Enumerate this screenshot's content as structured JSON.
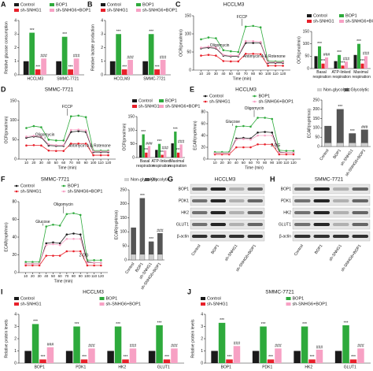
{
  "chart_data": [
    {
      "type": "bar",
      "label": "A",
      "ylabel": "Relative glucose consumption",
      "categories": [
        "HCCLM3",
        "SMMC-7721"
      ],
      "legend": true,
      "ylim": [
        0,
        4
      ],
      "yticks": [
        0,
        1,
        2,
        3,
        4
      ],
      "series": [
        {
          "name": "Control",
          "color": "#1a1a1a",
          "values": [
            1,
            1
          ]
        },
        {
          "name": "BOP1",
          "color": "#2eaa3c",
          "values": [
            3.1,
            2.8
          ],
          "sig": [
            "***",
            "***"
          ]
        },
        {
          "name": "sh-SNHG1",
          "color": "#e8202a",
          "values": [
            0.4,
            0.4
          ],
          "sig": [
            "***",
            "***"
          ]
        },
        {
          "name": "sh-SNHG6+BOP1",
          "color": "#f7a1c4",
          "values": [
            1.2,
            1.2
          ],
          "sig": [
            "###",
            "###"
          ]
        }
      ]
    },
    {
      "type": "bar",
      "label": "B",
      "ylabel": "Relative lactate production",
      "categories": [
        "HCCLM3",
        "SMMC-7721"
      ],
      "legend": true,
      "ylim": [
        0,
        4
      ],
      "yticks": [
        0,
        1,
        2,
        3,
        4
      ],
      "series": [
        {
          "name": "Control",
          "color": "#1a1a1a",
          "values": [
            1,
            1
          ]
        },
        {
          "name": "BOP1",
          "color": "#2eaa3c",
          "values": [
            3.0,
            3.0
          ],
          "sig": [
            "***",
            "***"
          ]
        },
        {
          "name": "sh-SNHG1",
          "color": "#e8202a",
          "values": [
            0.4,
            0.4
          ],
          "sig": [
            "***",
            "***"
          ]
        },
        {
          "name": "sh-SNHG6+BOP1",
          "color": "#f7a1c4",
          "values": [
            1.1,
            1.1
          ],
          "sig": [
            "###",
            "###"
          ]
        }
      ]
    },
    {
      "type": "line",
      "label": "C",
      "title": "HCCLM3",
      "ylabel": "OCR(pmol/min)",
      "xlabel": "Time (min)",
      "x": [
        10,
        20,
        30,
        40,
        50,
        60,
        70,
        80,
        90,
        100,
        110,
        120
      ],
      "xlim": [
        0,
        130
      ],
      "xticks": [
        10,
        20,
        30,
        40,
        50,
        60,
        70,
        80,
        90,
        100,
        110,
        120
      ],
      "ylim": [
        0,
        150
      ],
      "yticks": [
        0,
        50,
        100,
        150
      ],
      "annotations": [
        {
          "text": "Oligomycin",
          "x": 35
        },
        {
          "text": "FCCP",
          "x": 65
        },
        {
          "text": "Antimycin A & Rotenone",
          "x": 95
        }
      ],
      "series": [
        {
          "name": "Control",
          "color": "#1a1a1a",
          "values": [
            60,
            62,
            60,
            40,
            38,
            38,
            75,
            75,
            75,
            20,
            20,
            20
          ]
        },
        {
          "name": "BOP1",
          "color": "#2eaa3c",
          "values": [
            85,
            90,
            88,
            55,
            52,
            50,
            120,
            122,
            118,
            25,
            24,
            24
          ]
        },
        {
          "name": "sh-SNHG1",
          "color": "#e8202a",
          "values": [
            40,
            42,
            40,
            25,
            24,
            24,
            45,
            45,
            44,
            12,
            12,
            12
          ]
        },
        {
          "name": "sh-SNHG6+BOP1",
          "color": "#f7a1c4",
          "values": [
            62,
            65,
            62,
            42,
            40,
            40,
            80,
            80,
            78,
            22,
            22,
            22
          ]
        }
      ]
    },
    {
      "type": "bar",
      "ylabel": "OCR(pmol/min)",
      "categories": [
        "Basal respiration",
        "ATP-linked respiration",
        "Maximal respiration"
      ],
      "wrap": true,
      "legend": true,
      "ylim": [
        0,
        150
      ],
      "yticks": [
        0,
        50,
        100,
        150
      ],
      "series": [
        {
          "name": "Control",
          "color": "#1a1a1a",
          "values": [
            50,
            30,
            55
          ]
        },
        {
          "name": "BOP1",
          "color": "#2eaa3c",
          "values": [
            90,
            55,
            100
          ],
          "sig": [
            "***",
            "***",
            "***"
          ]
        },
        {
          "name": "sh-SNHG1",
          "color": "#e8202a",
          "values": [
            20,
            12,
            20
          ],
          "sig": [
            "***",
            "***",
            "***"
          ]
        },
        {
          "name": "sh-SNHG6+BOP1",
          "color": "#f7a1c4",
          "values": [
            45,
            28,
            50
          ],
          "sig": [
            "###",
            "###",
            "###"
          ]
        }
      ]
    },
    {
      "type": "line",
      "label": "D",
      "title": "SMMC-7721",
      "ylabel": "OCR(pmol/min)",
      "xlabel": "Time (min)",
      "x": [
        10,
        20,
        30,
        40,
        50,
        60,
        70,
        80,
        90,
        100,
        110,
        120
      ],
      "xlim": [
        0,
        130
      ],
      "xticks": [
        10,
        20,
        30,
        40,
        50,
        60,
        70,
        80,
        90,
        100,
        110,
        120
      ],
      "ylim": [
        0,
        150
      ],
      "yticks": [
        0,
        50,
        100,
        150
      ],
      "annotations": [
        {
          "text": "Oligomycin",
          "x": 35
        },
        {
          "text": "FCCP",
          "x": 65
        },
        {
          "text": "Antimycin A & Rotenone",
          "x": 95
        }
      ],
      "series": [
        {
          "name": "Control",
          "color": "#1a1a1a",
          "values": [
            55,
            58,
            56,
            35,
            34,
            34,
            70,
            72,
            70,
            18,
            18,
            18
          ]
        },
        {
          "name": "BOP1",
          "color": "#2eaa3c",
          "values": [
            80,
            85,
            82,
            50,
            48,
            48,
            110,
            112,
            108,
            22,
            22,
            22
          ]
        },
        {
          "name": "sh-SNHG1",
          "color": "#e8202a",
          "values": [
            35,
            36,
            35,
            22,
            21,
            21,
            40,
            40,
            40,
            10,
            10,
            10
          ]
        },
        {
          "name": "sh-SNHG6+BOP1",
          "color": "#f7a1c4",
          "values": [
            58,
            60,
            58,
            38,
            36,
            36,
            75,
            76,
            74,
            20,
            20,
            20
          ]
        }
      ]
    },
    {
      "type": "bar",
      "ylabel": "OCR(pmol/min)",
      "categories": [
        "Basal respiration",
        "ATP-linked respiration",
        "Maximal respiration"
      ],
      "wrap": true,
      "legend": true,
      "ylim": [
        0,
        150
      ],
      "yticks": [
        0,
        50,
        100,
        150
      ],
      "series": [
        {
          "name": "Control",
          "color": "#1a1a1a",
          "values": [
            45,
            28,
            52
          ]
        },
        {
          "name": "BOP1",
          "color": "#2eaa3c",
          "values": [
            85,
            50,
            95
          ],
          "sig": [
            "***",
            "***",
            "***"
          ]
        },
        {
          "name": "sh-SNHG1",
          "color": "#e8202a",
          "values": [
            18,
            10,
            18
          ],
          "sig": [
            "***",
            "***",
            "***"
          ]
        },
        {
          "name": "sh-SNHG6+BOP1",
          "color": "#f7a1c4",
          "values": [
            42,
            26,
            48
          ],
          "sig": [
            "###",
            "###",
            "###"
          ]
        }
      ]
    },
    {
      "type": "line",
      "label": "E",
      "title": "HCCLM3",
      "legend": true,
      "ylabel": "ECAR(mpH/min)",
      "xlabel": "Time (min)",
      "x": [
        10,
        20,
        30,
        40,
        50,
        60,
        70,
        80,
        90,
        100,
        110,
        120
      ],
      "xlim": [
        0,
        130
      ],
      "xticks": [
        10,
        20,
        30,
        40,
        50,
        60,
        70,
        80,
        90,
        100,
        110,
        120
      ],
      "ylim": [
        0,
        80
      ],
      "yticks": [
        0,
        20,
        40,
        60,
        80
      ],
      "annotations": [
        {
          "text": "Glucose",
          "x": 35
        },
        {
          "text": "Oligomycin",
          "x": 65
        },
        {
          "text": "2-DG",
          "x": 95
        }
      ],
      "series": [
        {
          "name": "Control",
          "color": "#1a1a1a",
          "values": [
            10,
            10,
            10,
            35,
            36,
            35,
            45,
            46,
            45,
            12,
            11,
            11
          ]
        },
        {
          "name": "BOP1",
          "color": "#2eaa3c",
          "values": [
            12,
            12,
            12,
            55,
            56,
            55,
            70,
            70,
            68,
            15,
            14,
            14
          ]
        },
        {
          "name": "sh-SNHG1",
          "color": "#e8202a",
          "values": [
            8,
            8,
            8,
            20,
            20,
            20,
            25,
            25,
            25,
            8,
            8,
            8
          ]
        },
        {
          "name": "sh-SNHG6+BOP1",
          "color": "#f7a1c4",
          "values": [
            10,
            10,
            10,
            33,
            34,
            33,
            40,
            40,
            40,
            11,
            11,
            11
          ]
        }
      ]
    },
    {
      "type": "stacked_bar",
      "ylabel": "ECAR(mpH/min)",
      "categories": [
        "Control",
        "BOP1",
        "sh-SNHG1",
        "sh-SNHG6+BOP1"
      ],
      "legend": true,
      "ylim": [
        0,
        250
      ],
      "yticks": [
        0,
        50,
        100,
        150,
        200,
        250
      ],
      "series": [
        {
          "name": "Non-glycolytic",
          "color": "#cfcfcf",
          "values": [
            20,
            20,
            20,
            20
          ]
        },
        {
          "name": "Glycolytic",
          "color": "#555555",
          "values": [
            90,
            180,
            50,
            70
          ],
          "sig": [
            null,
            "***",
            "***",
            "###"
          ]
        }
      ]
    },
    {
      "type": "line",
      "label": "F",
      "title": "SMMC-7721",
      "legend": true,
      "ylabel": "ECAR(mpH/min)",
      "xlabel": "Time (min)",
      "x": [
        10,
        20,
        30,
        40,
        50,
        60,
        70,
        80,
        90,
        100,
        110,
        120
      ],
      "xlim": [
        0,
        130
      ],
      "xticks": [
        10,
        20,
        30,
        40,
        50,
        60,
        70,
        80,
        90,
        100,
        110,
        120
      ],
      "ylim": [
        0,
        80
      ],
      "yticks": [
        0,
        20,
        40,
        60,
        80
      ],
      "annotations": [
        {
          "text": "Glucose",
          "x": 35
        },
        {
          "text": "Oligomycin",
          "x": 65
        },
        {
          "text": "2-DG",
          "x": 95
        }
      ],
      "series": [
        {
          "name": "Control",
          "color": "#1a1a1a",
          "values": [
            10,
            10,
            10,
            33,
            34,
            33,
            43,
            44,
            43,
            12,
            11,
            11
          ]
        },
        {
          "name": "BOP1",
          "color": "#2eaa3c",
          "values": [
            12,
            12,
            12,
            52,
            54,
            53,
            66,
            67,
            65,
            14,
            14,
            14
          ]
        },
        {
          "name": "sh-SNHG1",
          "color": "#e8202a",
          "values": [
            8,
            8,
            8,
            19,
            19,
            19,
            24,
            24,
            24,
            8,
            8,
            8
          ]
        },
        {
          "name": "sh-SNHG6+BOP1",
          "color": "#f7a1c4",
          "values": [
            10,
            10,
            10,
            31,
            32,
            31,
            38,
            38,
            38,
            11,
            11,
            11
          ]
        }
      ]
    },
    {
      "type": "stacked_bar",
      "ylabel": "ECAR(mpH/min)",
      "categories": [
        "Control",
        "BOP1",
        "sh-SNHG1",
        "sh-SNHG6+BOP1"
      ],
      "legend": true,
      "ylim": [
        0,
        250
      ],
      "yticks": [
        0,
        50,
        100,
        150,
        200,
        250
      ],
      "series": [
        {
          "name": "Non-glycolytic",
          "color": "#cfcfcf",
          "values": [
            20,
            20,
            20,
            20
          ]
        },
        {
          "name": "Glycolytic",
          "color": "#555555",
          "values": [
            95,
            200,
            45,
            75
          ],
          "sig": [
            null,
            "***",
            "***",
            "###"
          ]
        }
      ]
    },
    {
      "type": "bar",
      "label": "I",
      "title": "HCCLM3",
      "ylabel": "Relative protein levels",
      "categories": [
        "BOP1",
        "PDK1",
        "HK2",
        "GLUT1"
      ],
      "legend": true,
      "ylim": [
        0,
        4
      ],
      "yticks": [
        0,
        1,
        2,
        3,
        4
      ],
      "series": [
        {
          "name": "Control",
          "color": "#1a1a1a",
          "values": [
            1,
            1,
            1,
            1
          ]
        },
        {
          "name": "BOP1",
          "color": "#2eaa3c",
          "values": [
            3.2,
            3.0,
            3.0,
            3.1
          ],
          "sig": [
            "***",
            "***",
            "***",
            "***"
          ]
        },
        {
          "name": "sh-SNHG1",
          "color": "#e8202a",
          "values": [
            0.3,
            0.3,
            0.3,
            0.3
          ],
          "sig": [
            "***",
            "***",
            "***",
            "***"
          ]
        },
        {
          "name": "sh-SNHG6+BOP1",
          "color": "#f7a1c4",
          "values": [
            1.3,
            1.2,
            1.2,
            1.2
          ],
          "sig": [
            "###",
            "###",
            "###",
            "###"
          ]
        }
      ]
    },
    {
      "type": "bar",
      "label": "J",
      "title": "SMMC-7721",
      "ylabel": "Relative protein levels",
      "categories": [
        "BOP1",
        "PDK1",
        "HK2",
        "GLUT1"
      ],
      "legend": true,
      "ylim": [
        0,
        4
      ],
      "yticks": [
        0,
        1,
        2,
        3,
        4
      ],
      "series": [
        {
          "name": "Control",
          "color": "#1a1a1a",
          "values": [
            1,
            1,
            1,
            1
          ]
        },
        {
          "name": "BOP1",
          "color": "#2eaa3c",
          "values": [
            3.3,
            3.0,
            3.0,
            3.1
          ],
          "sig": [
            "***",
            "***",
            "***",
            "***"
          ]
        },
        {
          "name": "sh-SNHG1",
          "color": "#e8202a",
          "values": [
            0.3,
            0.3,
            0.3,
            0.3
          ],
          "sig": [
            "***",
            "***",
            "***",
            "***"
          ]
        },
        {
          "name": "sh-SNHG6+BOP1",
          "color": "#f7a1c4",
          "values": [
            1.4,
            1.2,
            1.1,
            1.2
          ],
          "sig": [
            "###",
            "###",
            "###",
            "###"
          ]
        }
      ]
    }
  ],
  "blots": [
    {
      "label": "G",
      "title": "HCCLM3",
      "rows": [
        "BOP1",
        "PDK1",
        "HK2",
        "GLUT1",
        "β-actin"
      ],
      "lanes": [
        "Control",
        "BOP1",
        "sh-SNHG1",
        "sh-SNHG6+BOP1"
      ]
    },
    {
      "label": "H",
      "title": "SMMC-7721",
      "rows": [
        "BOP1",
        "PDK1",
        "HK2",
        "GLUT1",
        "β-actin"
      ],
      "lanes": [
        "Control",
        "BOP1",
        "sh-SNHG1",
        "sh-SNHG6+BOP1"
      ]
    }
  ]
}
